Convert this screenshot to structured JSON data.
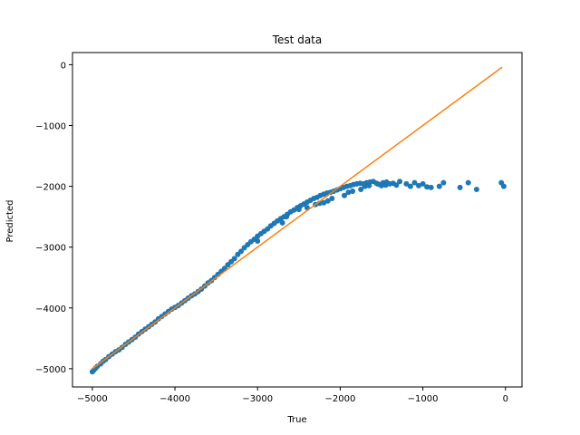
{
  "chart_data": {
    "type": "scatter",
    "title": "Test data",
    "xlabel": "True",
    "ylabel": "Predicted",
    "xlim": [
      -5240,
      200
    ],
    "ylim": [
      -5300,
      200
    ],
    "xticks": [
      -5000,
      -4000,
      -3000,
      -2000,
      -1000,
      0
    ],
    "yticks": [
      0,
      -1000,
      -2000,
      -3000,
      -4000,
      -5000
    ],
    "xtick_labels": [
      "−5000",
      "−4000",
      "−3000",
      "−2000",
      "−1000",
      "0"
    ],
    "ytick_labels": [
      "0",
      "−1000",
      "−2000",
      "−3000",
      "−4000",
      "−5000"
    ],
    "grid": false,
    "colors": {
      "points": "#1f77b4",
      "line": "#ff7f0e",
      "frame": "#000000"
    },
    "series": [
      {
        "kind": "scatter",
        "x": [
          -5000,
          -4980,
          -4960,
          -4940,
          -4900,
          -4870,
          -4840,
          -4800,
          -4760,
          -4720,
          -4680,
          -4640,
          -4600,
          -4560,
          -4520,
          -4480,
          -4440,
          -4400,
          -4360,
          -4320,
          -4280,
          -4240,
          -4200,
          -4160,
          -4120,
          -4080,
          -4040,
          -4000,
          -3960,
          -3920,
          -3880,
          -3840,
          -3800,
          -3760,
          -3720,
          -3680,
          -3640,
          -3600,
          -3560,
          -3520,
          -3480,
          -3440,
          -3400,
          -3360,
          -3320,
          -3280,
          -3240,
          -3200,
          -3160,
          -3120,
          -3080,
          -3040,
          -3000,
          -2960,
          -2920,
          -2880,
          -2840,
          -2800,
          -2760,
          -2720,
          -2680,
          -2640,
          -2600,
          -2560,
          -2520,
          -2480,
          -2440,
          -2400,
          -2360,
          -2320,
          -2280,
          -2240,
          -2200,
          -2160,
          -2120,
          -2080,
          -2040,
          -2000,
          -1960,
          -1920,
          -1880,
          -1840,
          -1800,
          -1760,
          -1720,
          -1680,
          -1640,
          -1600,
          -1560,
          -1520,
          -1480,
          -1440,
          -1400,
          -1360,
          -1320,
          -1280,
          -1200,
          -1150,
          -1100,
          -1050,
          -1000,
          -950,
          -900,
          -800,
          -750,
          -550,
          -450,
          -350,
          -50,
          -20,
          -3000,
          -2700,
          -2650,
          -2500,
          -2400,
          -2300,
          -2250,
          -2200,
          -2150,
          -2100,
          -1950,
          -1900,
          -1850,
          -1750,
          -1700,
          -1650,
          -1550,
          -1500,
          -1450
        ],
        "y": [
          -5050,
          -5020,
          -4990,
          -4960,
          -4920,
          -4880,
          -4850,
          -4800,
          -4760,
          -4720,
          -4690,
          -4650,
          -4600,
          -4560,
          -4520,
          -4480,
          -4430,
          -4390,
          -4350,
          -4310,
          -4270,
          -4230,
          -4180,
          -4140,
          -4100,
          -4060,
          -4020,
          -3990,
          -3960,
          -3920,
          -3880,
          -3840,
          -3800,
          -3770,
          -3730,
          -3690,
          -3640,
          -3590,
          -3550,
          -3500,
          -3450,
          -3400,
          -3350,
          -3290,
          -3240,
          -3190,
          -3120,
          -3070,
          -3010,
          -2960,
          -2910,
          -2870,
          -2820,
          -2780,
          -2740,
          -2700,
          -2650,
          -2610,
          -2570,
          -2530,
          -2500,
          -2460,
          -2420,
          -2390,
          -2350,
          -2320,
          -2290,
          -2260,
          -2230,
          -2200,
          -2180,
          -2150,
          -2130,
          -2110,
          -2100,
          -2080,
          -2060,
          -2040,
          -2020,
          -2000,
          -1990,
          -1970,
          -1960,
          -1950,
          -1960,
          -1940,
          -1930,
          -1920,
          -1950,
          -1970,
          -1940,
          -1930,
          -1960,
          -1950,
          -1980,
          -1920,
          -1960,
          -2000,
          -1940,
          -1990,
          -1960,
          -2010,
          -2020,
          -2000,
          -1940,
          -2020,
          -1940,
          -2050,
          -1940,
          -2000,
          -2900,
          -2600,
          -2500,
          -2380,
          -2350,
          -2300,
          -2280,
          -2270,
          -2240,
          -2200,
          -2150,
          -2100,
          -2080,
          -2050,
          -2000,
          -1990,
          -1960,
          -1990,
          -1980
        ],
        "marker_size": 3
      },
      {
        "kind": "line",
        "x": [
          -5000,
          -40
        ],
        "y": [
          -5000,
          -40
        ]
      }
    ]
  }
}
